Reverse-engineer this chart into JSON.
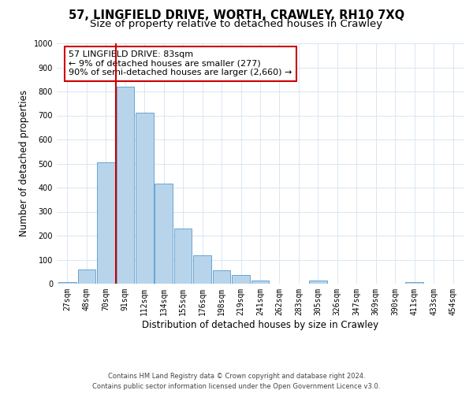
{
  "title": "57, LINGFIELD DRIVE, WORTH, CRAWLEY, RH10 7XQ",
  "subtitle": "Size of property relative to detached houses in Crawley",
  "xlabel": "Distribution of detached houses by size in Crawley",
  "ylabel": "Number of detached properties",
  "bin_labels": [
    "27sqm",
    "48sqm",
    "70sqm",
    "91sqm",
    "112sqm",
    "134sqm",
    "155sqm",
    "176sqm",
    "198sqm",
    "219sqm",
    "241sqm",
    "262sqm",
    "283sqm",
    "305sqm",
    "326sqm",
    "347sqm",
    "369sqm",
    "390sqm",
    "411sqm",
    "433sqm",
    "454sqm"
  ],
  "bar_values": [
    8,
    60,
    505,
    820,
    710,
    415,
    230,
    118,
    55,
    35,
    14,
    0,
    0,
    12,
    0,
    0,
    0,
    0,
    8,
    0,
    0
  ],
  "bar_color": "#b8d4eb",
  "bar_edge_color": "#5599cc",
  "vline_color": "#cc0000",
  "vline_pos": 2.5,
  "annotation_text": "57 LINGFIELD DRIVE: 83sqm\n← 9% of detached houses are smaller (277)\n90% of semi-detached houses are larger (2,660) →",
  "annotation_box_color": "#ffffff",
  "annotation_box_edge": "#cc0000",
  "ylim": [
    0,
    1000
  ],
  "yticks": [
    0,
    100,
    200,
    300,
    400,
    500,
    600,
    700,
    800,
    900,
    1000
  ],
  "footer_line1": "Contains HM Land Registry data © Crown copyright and database right 2024.",
  "footer_line2": "Contains public sector information licensed under the Open Government Licence v3.0.",
  "bg_color": "#ffffff",
  "grid_color": "#ccddee",
  "title_fontsize": 10.5,
  "subtitle_fontsize": 9.5,
  "axis_label_fontsize": 8.5,
  "tick_fontsize": 7,
  "footer_fontsize": 6,
  "annotation_fontsize": 8
}
